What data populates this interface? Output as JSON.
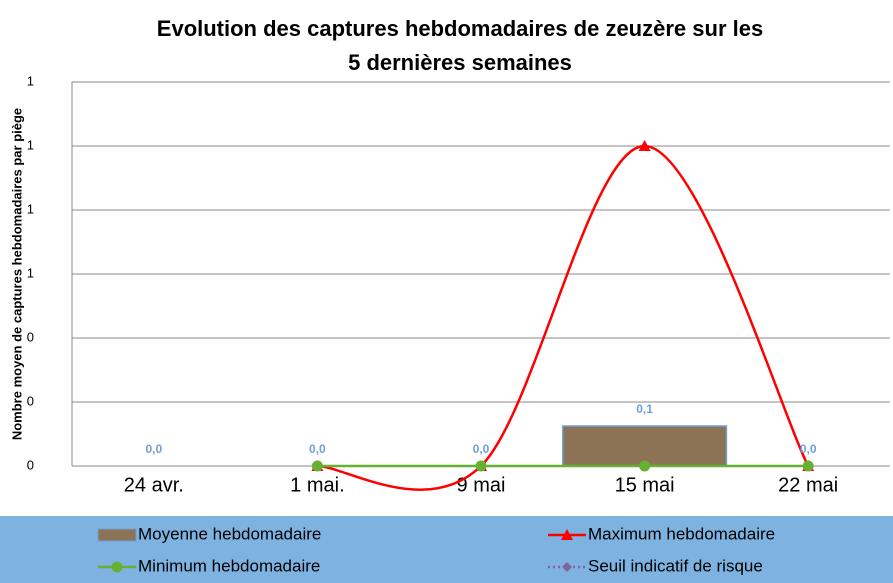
{
  "chart_data": {
    "type": "bar-line",
    "title": "Evolution des captures hebdomadaires de zeuzère sur les 5 dernières semaines",
    "y_label": "Nombre moyen de captures hebdomadaires par piège",
    "categories": [
      "24 avr.",
      "1 mai.",
      "9 mai",
      "15 mai",
      "22 mai"
    ],
    "series": [
      {
        "name": "Moyenne hebdomadaire",
        "kind": "bar",
        "color": "#8c7355",
        "values": [
          0,
          0,
          0,
          0.125,
          0
        ],
        "value_labels": [
          "0,0",
          "0,0",
          "0,0",
          "0,1",
          "0,0"
        ]
      },
      {
        "name": "Maximum hebdomadaire",
        "kind": "line",
        "marker": "triangle",
        "color": "#ff0000",
        "values": [
          null,
          0,
          0,
          1,
          0
        ]
      },
      {
        "name": "Minimum hebdomadaire",
        "kind": "line",
        "marker": "circle",
        "color": "#66b032",
        "values": [
          null,
          0,
          0,
          0,
          0
        ]
      },
      {
        "name": "Seuil indicatif de risque",
        "kind": "line",
        "marker": "diamond",
        "dashed": true,
        "color": "#8064a2",
        "values": [
          null,
          null,
          null,
          null,
          null
        ]
      }
    ],
    "ylim": [
      0,
      1.2
    ],
    "yticks": [
      0,
      {
        "value": 0.2,
        "label": "0"
      },
      {
        "value": 0.4,
        "label": "0"
      },
      {
        "value": 0.6,
        "label": "1"
      },
      {
        "value": 0.8,
        "label": "1"
      },
      1,
      {
        "value": 1.2,
        "label": "1"
      }
    ],
    "grid": true,
    "smooth": true,
    "legend": "bottom"
  }
}
